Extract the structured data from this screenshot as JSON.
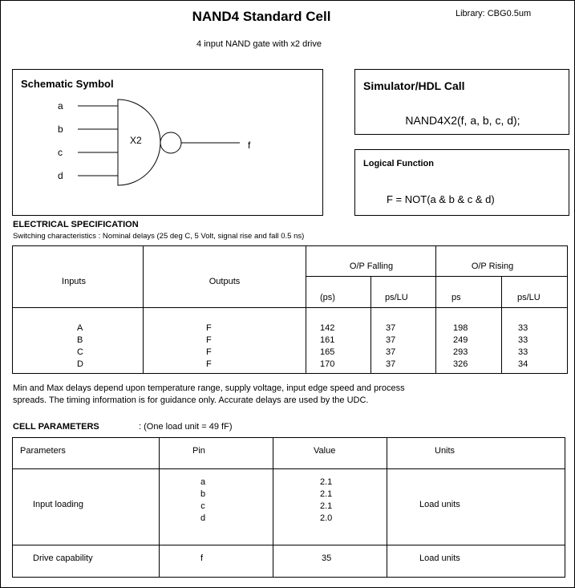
{
  "header": {
    "title": "NAND4 Standard Cell",
    "library": "Library: CBG0.5um",
    "subtitle": "4 input NAND gate with x2 drive"
  },
  "schematic": {
    "title": "Schematic Symbol",
    "inputs": [
      "a",
      "b",
      "c",
      "d"
    ],
    "output": "f",
    "drive_label": "X2"
  },
  "simulator": {
    "title": "Simulator/HDL Call",
    "call": "NAND4X2(f, a, b, c, d);"
  },
  "logic": {
    "title": "Logical Function",
    "function": "F = NOT(a & b & c & d)"
  },
  "electrical": {
    "title": "ELECTRICAL SPECIFICATION",
    "subtitle": "Switching characteristics : Nominal delays (25 deg C, 5 Volt, signal rise and fall 0.5 ns)",
    "headers": {
      "inputs": "Inputs",
      "outputs": "Outputs",
      "falling": "O/P Falling",
      "rising": "O/P Rising",
      "fall_ps": "(ps)",
      "fall_pslu": "ps/LU",
      "rise_ps": "ps",
      "rise_pslu": "ps/LU"
    },
    "columns": {
      "inputs": "A\nB\nC\nD",
      "outputs": "F\nF\nF\nF",
      "fall_ps": "142\n161\n165\n170",
      "fall_pslu": "37\n37\n37\n37",
      "rise_ps": "198\n249\n293\n326",
      "rise_pslu": "33\n33\n33\n34"
    },
    "note1": "Min and Max delays depend upon temperature range, supply voltage, input edge speed and process",
    "note2": "spreads.  The timing information is for guidance only.  Accurate delays are used by the UDC."
  },
  "cell": {
    "title": "CELL PARAMETERS",
    "load_unit": ": (One load unit = 49 fF)",
    "headers": {
      "param": "Parameters",
      "pin": "Pin",
      "value": "Value",
      "units": "Units"
    },
    "rows": [
      {
        "param": "Input loading",
        "pins": "a\nb\nc\nd",
        "values": "2.1\n2.1\n2.1\n2.0",
        "units": "Load units"
      },
      {
        "param": "Drive capability",
        "pins": "f",
        "values": "35",
        "units": "Load units"
      }
    ]
  }
}
